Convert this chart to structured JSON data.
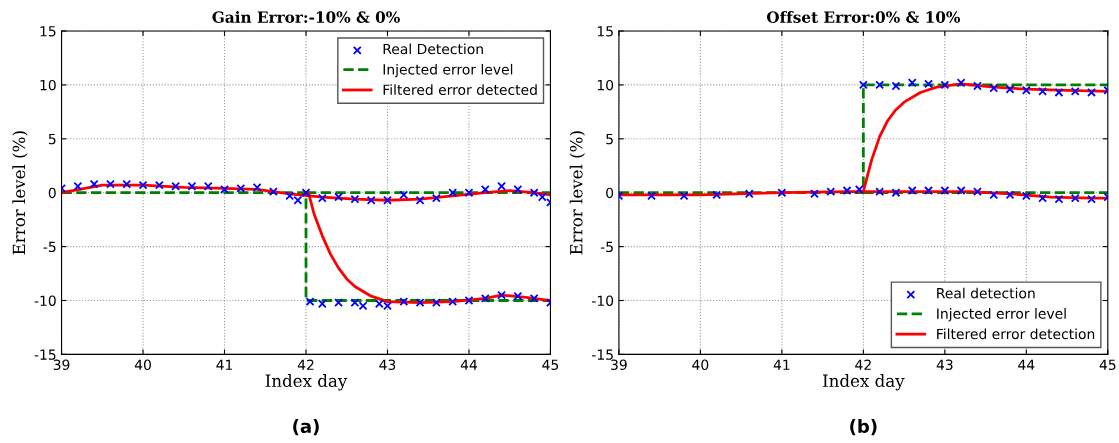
{
  "chart_data": [
    {
      "type": "line",
      "title": "Gain Error:-10% & 0%",
      "xlabel": "Index day",
      "ylabel": "Error level (%)",
      "annotations": [
        "(a)"
      ],
      "xlim": [
        39,
        45
      ],
      "ylim": [
        -15,
        15
      ],
      "xticks": [
        39,
        40,
        41,
        42,
        43,
        44,
        45
      ],
      "yticks": [
        -15,
        -10,
        -5,
        0,
        5,
        10,
        15
      ],
      "grid": true,
      "legend": "top right",
      "series": [
        {
          "type": "scatter",
          "name": "Real Detection",
          "color": "#0000ff",
          "marker": "cross",
          "x": [
            39.0,
            39.2,
            39.4,
            39.6,
            39.8,
            40.0,
            40.2,
            40.4,
            40.6,
            40.8,
            41.0,
            41.2,
            41.4,
            41.6,
            41.8,
            41.9,
            42.0,
            42.2,
            42.4,
            42.6,
            42.8,
            43.0,
            43.2,
            43.4,
            43.6,
            43.8,
            44.0,
            44.2,
            44.4,
            44.6,
            44.8,
            44.9,
            45.0
          ],
          "values": [
            0.4,
            0.6,
            0.8,
            0.8,
            0.8,
            0.7,
            0.7,
            0.6,
            0.6,
            0.6,
            0.3,
            0.4,
            0.5,
            0.1,
            -0.3,
            -0.7,
            0,
            -0.5,
            -0.4,
            -0.6,
            -0.7,
            -0.7,
            -0.2,
            -0.7,
            -0.5,
            0,
            0,
            0.3,
            0.6,
            0.3,
            0,
            -0.4,
            -0.9
          ]
        },
        {
          "type": "scatter",
          "color": "#0000ff",
          "marker": "cross",
          "x": [
            42.05,
            42.2,
            42.4,
            42.6,
            42.7,
            42.9,
            43.0,
            43.2,
            43.4,
            43.6,
            43.8,
            44.0,
            44.2,
            44.4,
            44.6,
            44.8,
            45.0
          ],
          "values": [
            -10.1,
            -10.3,
            -10.2,
            -10.2,
            -10.5,
            -10.3,
            -10.5,
            -10.1,
            -10.2,
            -10.2,
            -10.1,
            -10,
            -9.8,
            -9.5,
            -9.6,
            -9.8,
            -10.2
          ]
        },
        {
          "type": "line",
          "name": "Injected error level",
          "color": "#008000",
          "line_style": "dashed",
          "x": [
            39,
            42,
            42,
            45
          ],
          "values": [
            0,
            0,
            -10,
            -10
          ]
        },
        {
          "type": "line",
          "color": "#008000",
          "line_style": "dashed",
          "x": [
            42,
            45
          ],
          "values": [
            0,
            0
          ]
        },
        {
          "type": "line",
          "name": "Filtered error detected",
          "color": "#ff0000",
          "line_style": "solid",
          "x": [
            39,
            39.5,
            40,
            40.5,
            41,
            41.4,
            41.8,
            42.2,
            42.6,
            43.0,
            43.4,
            43.8,
            44.2,
            44.5,
            44.8,
            45
          ],
          "values": [
            0,
            0.7,
            0.7,
            0.5,
            0.4,
            0.3,
            -0.1,
            -0.4,
            -0.6,
            -0.7,
            -0.6,
            -0.3,
            0,
            0.2,
            0,
            -0.2
          ]
        },
        {
          "type": "line",
          "color": "#ff0000",
          "line_style": "solid",
          "x": [
            42.03,
            42.1,
            42.2,
            42.3,
            42.4,
            42.5,
            42.6,
            42.8,
            43.0,
            43.4,
            43.8,
            44.2,
            44.4,
            44.7,
            45
          ],
          "values": [
            0,
            -2,
            -4,
            -5.7,
            -7,
            -8,
            -8.7,
            -9.6,
            -10.1,
            -10.2,
            -10.1,
            -9.8,
            -9.5,
            -9.7,
            -10
          ]
        }
      ]
    },
    {
      "type": "line",
      "title": "Offset Error:0% & 10%",
      "xlabel": "Index day",
      "ylabel": "Error level (%)",
      "annotations": [
        "(b)"
      ],
      "xlim": [
        39,
        45
      ],
      "ylim": [
        -15,
        15
      ],
      "xticks": [
        39,
        40,
        41,
        42,
        43,
        44,
        45
      ],
      "yticks": [
        -15,
        -10,
        -5,
        0,
        5,
        10,
        15
      ],
      "grid": true,
      "legend": "bottom right",
      "series": [
        {
          "type": "scatter",
          "name": "Real detection",
          "color": "#0000ff",
          "marker": "cross",
          "x": [
            39.0,
            39.4,
            39.8,
            40.2,
            40.6,
            41.0,
            41.4,
            41.6,
            41.8,
            41.95,
            42.2,
            42.4,
            42.6,
            42.8,
            43.0,
            43.2,
            43.4,
            43.6,
            43.8,
            44.0,
            44.2,
            44.4,
            44.6,
            44.8,
            45.0
          ],
          "values": [
            -0.3,
            -0.3,
            -0.3,
            -0.2,
            -0.1,
            0,
            -0.1,
            0.1,
            0.2,
            0.3,
            0.1,
            0,
            0.2,
            0.2,
            0.2,
            0.2,
            0.1,
            -0.2,
            -0.2,
            -0.3,
            -0.5,
            -0.6,
            -0.5,
            -0.6,
            -0.4
          ]
        },
        {
          "type": "scatter",
          "color": "#0000ff",
          "marker": "cross",
          "x": [
            42.0,
            42.2,
            42.4,
            42.6,
            42.8,
            43.0,
            43.2,
            43.4,
            43.6,
            43.8,
            44.0,
            44.2,
            44.4,
            44.6,
            44.8,
            45.0
          ],
          "values": [
            10,
            10,
            9.9,
            10.2,
            10.1,
            10,
            10.2,
            9.9,
            9.7,
            9.6,
            9.5,
            9.4,
            9.3,
            9.4,
            9.3,
            9.5
          ]
        },
        {
          "type": "line",
          "name": "Injected error level",
          "color": "#008000",
          "line_style": "dashed",
          "x": [
            39,
            42,
            42,
            45
          ],
          "values": [
            0,
            0,
            10,
            10
          ]
        },
        {
          "type": "line",
          "color": "#008000",
          "line_style": "dashed",
          "x": [
            42,
            45
          ],
          "values": [
            0,
            0
          ]
        },
        {
          "type": "line",
          "name": "Filtered error detection",
          "color": "#ff0000",
          "line_style": "solid",
          "x": [
            39,
            40,
            41,
            41.8,
            42.5,
            43.3,
            43.8,
            44.3,
            44.8,
            45
          ],
          "values": [
            -0.2,
            -0.2,
            0,
            0.1,
            0.1,
            0.1,
            -0.1,
            -0.4,
            -0.5,
            -0.5
          ]
        },
        {
          "type": "line",
          "color": "#ff0000",
          "line_style": "solid",
          "x": [
            42.0,
            42.1,
            42.2,
            42.3,
            42.4,
            42.5,
            42.7,
            42.9,
            43.2,
            43.6,
            44.0,
            44.5,
            45
          ],
          "values": [
            0.1,
            3,
            5.2,
            6.7,
            7.7,
            8.4,
            9.3,
            9.8,
            10.1,
            9.8,
            9.6,
            9.5,
            9.4
          ]
        }
      ]
    }
  ]
}
